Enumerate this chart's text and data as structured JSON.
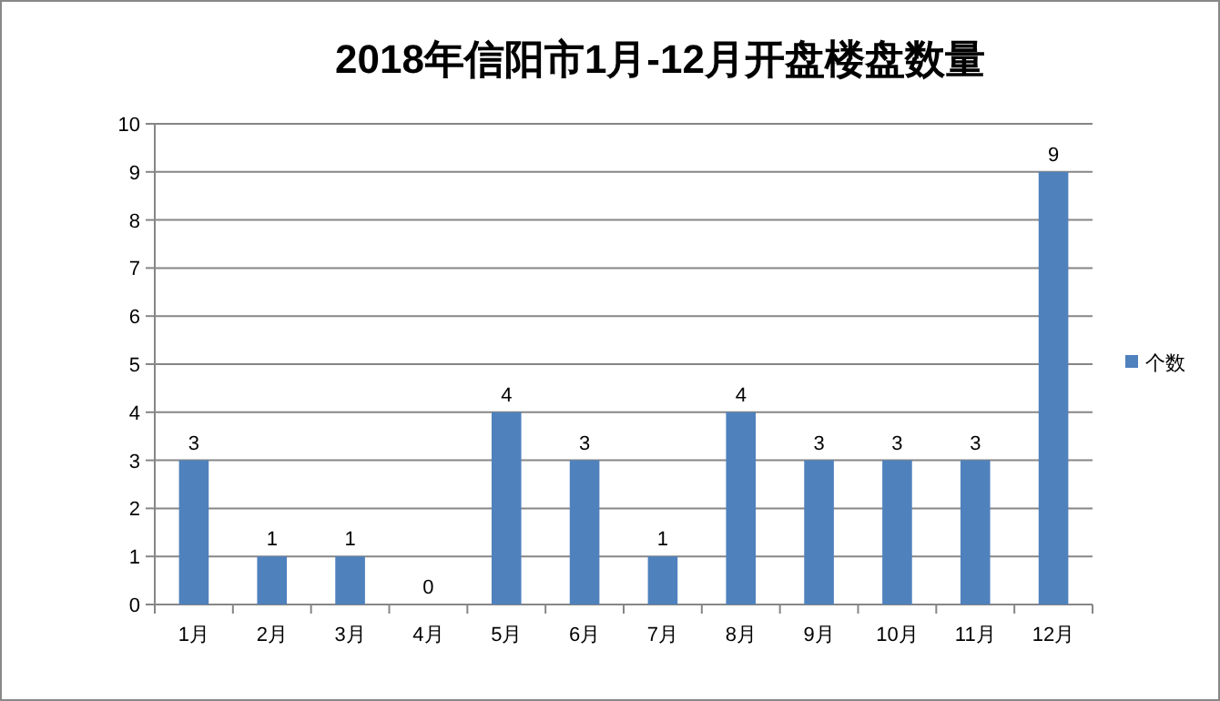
{
  "chart_data": {
    "type": "bar",
    "title": "2018年信阳市1月-12月开盘楼盘数量",
    "categories": [
      "1月",
      "2月",
      "3月",
      "4月",
      "5月",
      "6月",
      "7月",
      "8月",
      "9月",
      "10月",
      "11月",
      "12月"
    ],
    "series": [
      {
        "name": "个数",
        "color": "#4f81bd",
        "values": [
          3,
          1,
          1,
          0,
          4,
          3,
          1,
          4,
          3,
          3,
          3,
          9
        ]
      }
    ],
    "ylim": [
      0,
      10
    ],
    "yticks": [
      0,
      1,
      2,
      3,
      4,
      5,
      6,
      7,
      8,
      9,
      10
    ],
    "grid": "y",
    "legend": "right",
    "data_labels": true
  }
}
